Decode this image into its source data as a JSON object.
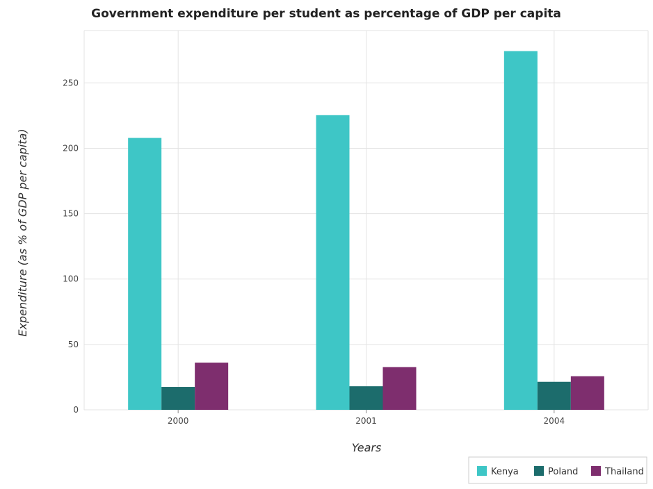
{
  "chart_data": {
    "type": "bar",
    "title": "Government expenditure per student as percentage of GDP per capita",
    "xlabel": "Years",
    "ylabel": "Expenditure (as % of GDP per capita)",
    "categories": [
      "2000",
      "2001",
      "2004"
    ],
    "ylim": [
      0,
      290
    ],
    "yticks": [
      0,
      50,
      100,
      150,
      200,
      250
    ],
    "grid": true,
    "legend_position": "bottom-right",
    "series": [
      {
        "name": "Kenya",
        "color": "#3ec6c6",
        "values": [
          207.9,
          225.3,
          274.3
        ]
      },
      {
        "name": "Poland",
        "color": "#1c6c6c",
        "values": [
          17.5,
          18.0,
          21.4
        ]
      },
      {
        "name": "Thailand",
        "color": "#7e2e6e",
        "values": [
          36.1,
          32.7,
          25.7
        ]
      }
    ]
  }
}
